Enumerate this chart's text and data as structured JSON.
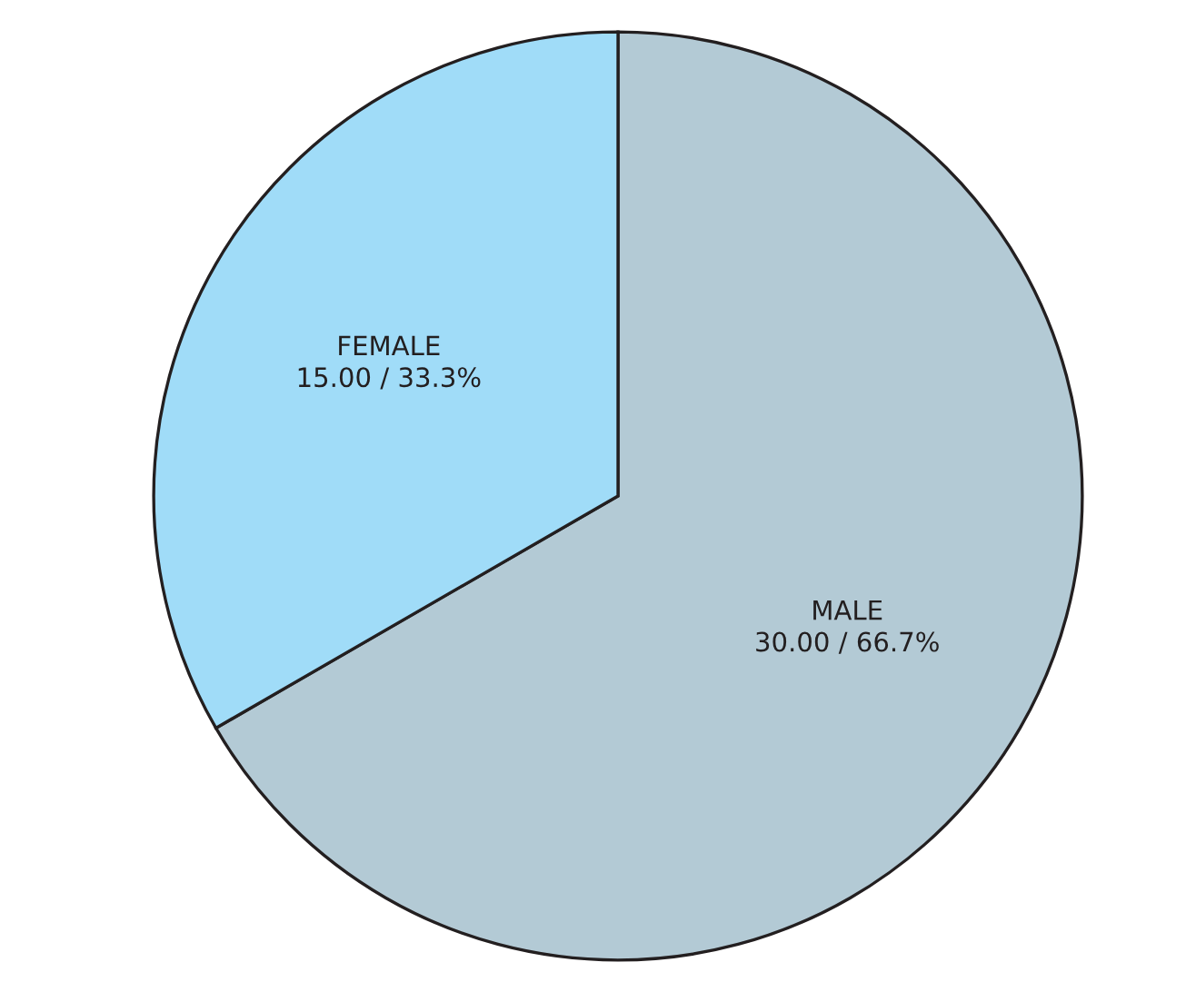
{
  "chart_data": {
    "type": "pie",
    "categories": [
      "MALE",
      "FEMALE"
    ],
    "values": [
      30.0,
      15.0
    ],
    "value_labels": [
      "30.00 / 66.7%",
      "15.00 / 33.3%"
    ],
    "colors": [
      "#b3cad5",
      "#a0dcf8"
    ],
    "legend": false
  }
}
